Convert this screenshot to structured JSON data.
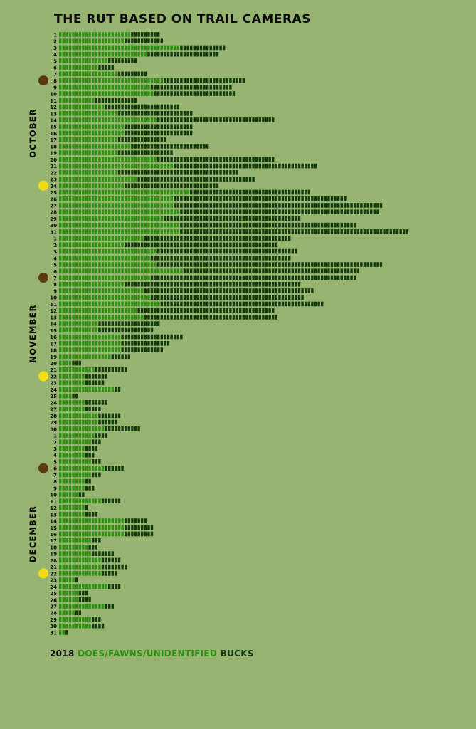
{
  "title": "THE RUT BASED ON TRAIL CAMERAS",
  "legend": {
    "year": "2018",
    "does": "DOES/FAWNS/UNIDENTIFIED",
    "bucks": "BUCKS"
  },
  "colors": {
    "background": "#97b571",
    "does": "#2e8f12",
    "bucks": "#123a0b",
    "new_moon": "#5b3a0d",
    "full_moon": "#f4dc14",
    "text": "#0b0b0b"
  },
  "chart_data": {
    "type": "bar",
    "orientation": "horizontal",
    "stacked": true,
    "title": "THE RUT BASED ON TRAIL CAMERAS",
    "grid": false,
    "legend": "bottom-left",
    "months": [
      {
        "name": "OCTOBER",
        "days": [
          1,
          2,
          3,
          4,
          5,
          6,
          7,
          8,
          9,
          10,
          11,
          12,
          13,
          14,
          15,
          16,
          17,
          18,
          19,
          20,
          21,
          22,
          23,
          24,
          25,
          26,
          27,
          28,
          29,
          30,
          31
        ],
        "does": [
          22,
          20,
          37,
          27,
          15,
          12,
          18,
          32,
          28,
          29,
          11,
          14,
          18,
          30,
          20,
          20,
          18,
          22,
          18,
          30,
          35,
          18,
          24,
          20,
          40,
          35,
          35,
          37,
          32,
          37,
          37
        ],
        "bucks": [
          9,
          12,
          14,
          22,
          9,
          5,
          9,
          25,
          25,
          25,
          13,
          23,
          23,
          36,
          21,
          21,
          15,
          24,
          17,
          36,
          44,
          37,
          36,
          29,
          37,
          53,
          64,
          61,
          42,
          54,
          70
        ],
        "moons": [
          {
            "day": 8,
            "phase": "new"
          },
          {
            "day": 24,
            "phase": "full"
          }
        ]
      },
      {
        "name": "NOVEMBER",
        "days": [
          1,
          2,
          3,
          4,
          5,
          6,
          7,
          8,
          9,
          10,
          11,
          12,
          13,
          14,
          15,
          16,
          17,
          18,
          19,
          20,
          21,
          22,
          23,
          24,
          25,
          26,
          27,
          28,
          29,
          30
        ],
        "does": [
          26,
          20,
          30,
          28,
          30,
          38,
          28,
          20,
          26,
          28,
          31,
          24,
          26,
          12,
          12,
          19,
          19,
          19,
          16,
          4,
          11,
          8,
          8,
          17,
          4,
          8,
          8,
          12,
          12,
          14
        ],
        "bucks": [
          45,
          47,
          43,
          43,
          69,
          54,
          63,
          54,
          52,
          47,
          50,
          42,
          41,
          19,
          17,
          19,
          15,
          13,
          6,
          3,
          10,
          7,
          6,
          2,
          2,
          7,
          5,
          7,
          6,
          11
        ],
        "moons": [
          {
            "day": 7,
            "phase": "new"
          },
          {
            "day": 22,
            "phase": "full"
          }
        ]
      },
      {
        "name": "DECEMBER",
        "days": [
          1,
          2,
          3,
          4,
          5,
          6,
          7,
          8,
          9,
          10,
          11,
          12,
          13,
          14,
          15,
          16,
          17,
          18,
          19,
          20,
          21,
          22,
          23,
          24,
          25,
          26,
          27,
          28,
          29,
          30,
          31
        ],
        "does": [
          11,
          10,
          8,
          8,
          10,
          14,
          10,
          8,
          8,
          6,
          13,
          8,
          8,
          20,
          20,
          20,
          10,
          9,
          10,
          13,
          13,
          13,
          5,
          15,
          6,
          6,
          14,
          5,
          10,
          10,
          2
        ],
        "bucks": [
          4,
          3,
          4,
          3,
          3,
          6,
          3,
          2,
          3,
          2,
          6,
          1,
          4,
          7,
          9,
          9,
          3,
          3,
          7,
          6,
          8,
          5,
          1,
          4,
          3,
          4,
          3,
          2,
          3,
          4,
          1
        ],
        "moons": [
          {
            "day": 6,
            "phase": "new"
          },
          {
            "day": 22,
            "phase": "full"
          }
        ]
      }
    ]
  }
}
